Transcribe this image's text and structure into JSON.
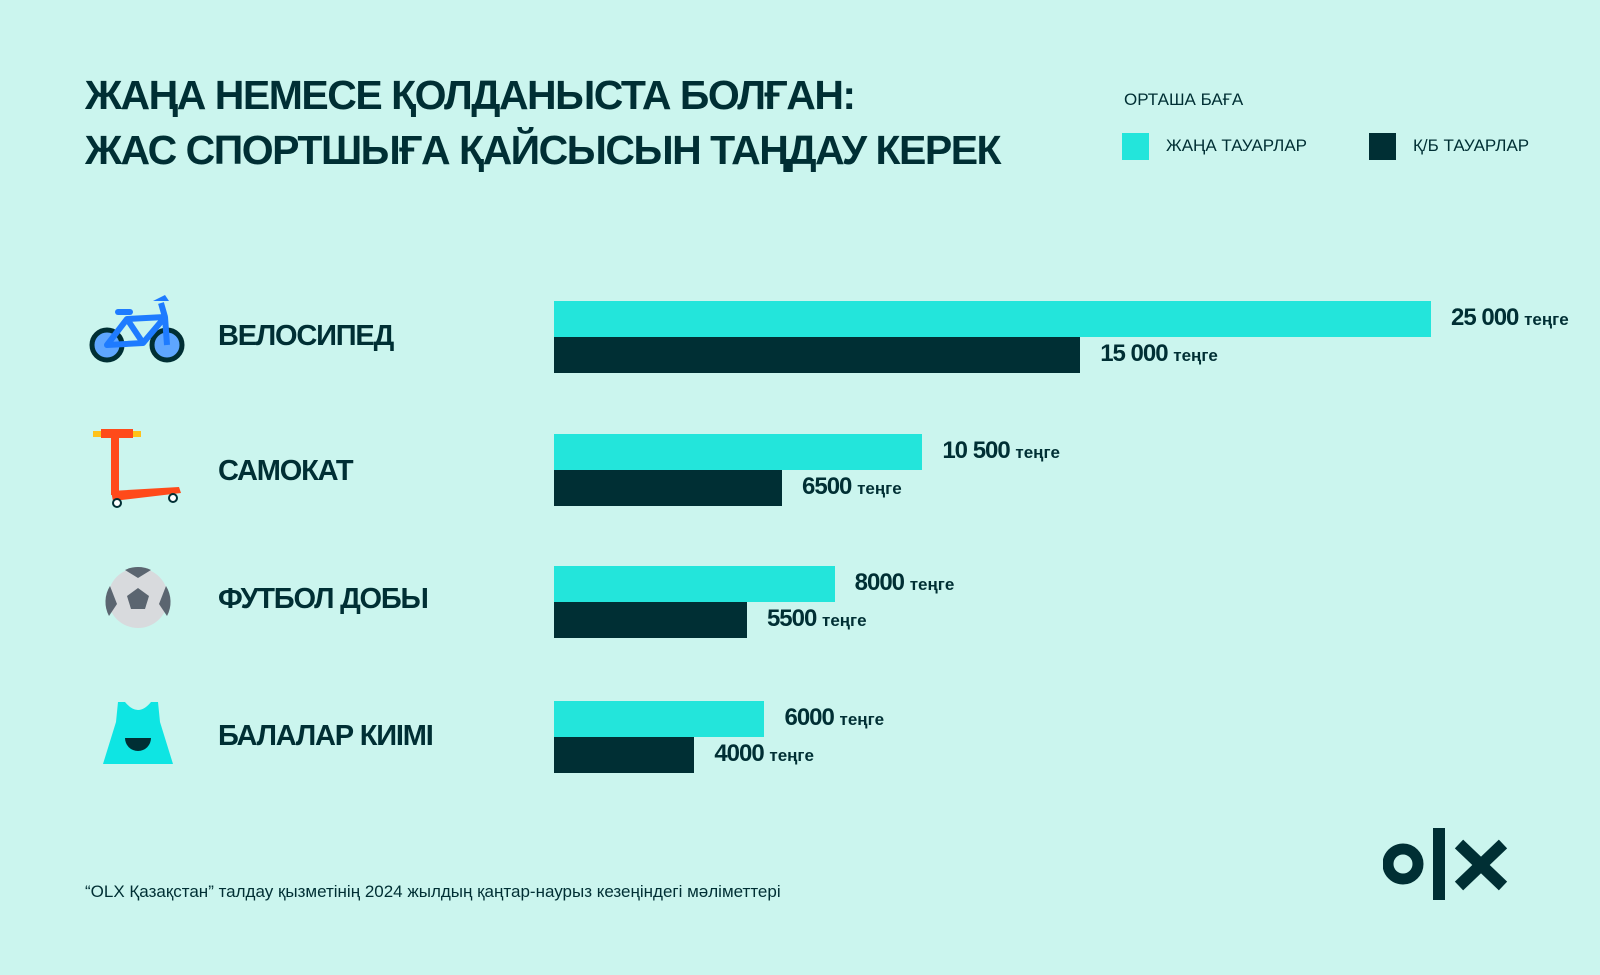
{
  "title": {
    "line1": "ЖАҢА НЕМЕСЕ ҚОЛДАНЫСТА БОЛҒАН:",
    "line2": "ЖАС СПОРТШЫҒА ҚАЙСЫСЫН ТАҢДАУ КЕРЕК"
  },
  "legend": {
    "heading": "ОРТАША БАҒА",
    "new": "ЖАҢА ТАУАРЛАР",
    "used": "Қ/Б ТАУАРЛАР"
  },
  "colors": {
    "new": "#23e5db",
    "used": "#002f34",
    "bg": "#cbf5ee"
  },
  "chart_data": {
    "type": "bar",
    "orientation": "horizontal",
    "unit": "теңге",
    "categories": [
      "ВЕЛОСИПЕД",
      "САМОКАТ",
      "ФУТБОЛ ДОБЫ",
      "БАЛАЛАР КИІМІ"
    ],
    "category_icons": [
      "bicycle-icon",
      "scooter-icon",
      "soccer-ball-icon",
      "kids-clothes-icon"
    ],
    "series": [
      {
        "name": "ЖАҢА ТАУАРЛАР",
        "values": [
          25000,
          10500,
          8000,
          6000
        ],
        "labels": [
          "25 000",
          "10 500",
          "8000",
          "6000"
        ]
      },
      {
        "name": "Қ/Б ТАУАРЛАР",
        "values": [
          15000,
          6500,
          5500,
          4000
        ],
        "labels": [
          "15 000",
          "6500",
          "5500",
          "4000"
        ]
      }
    ],
    "xlim": [
      0,
      25000
    ],
    "grid": false,
    "legend_position": "top-right"
  },
  "footnote": "“OLX Қазақстан” талдау қызметінің 2024 жылдың қаңтар-наурыз кезеңіндегі мәліметтері",
  "logo": "OLX"
}
